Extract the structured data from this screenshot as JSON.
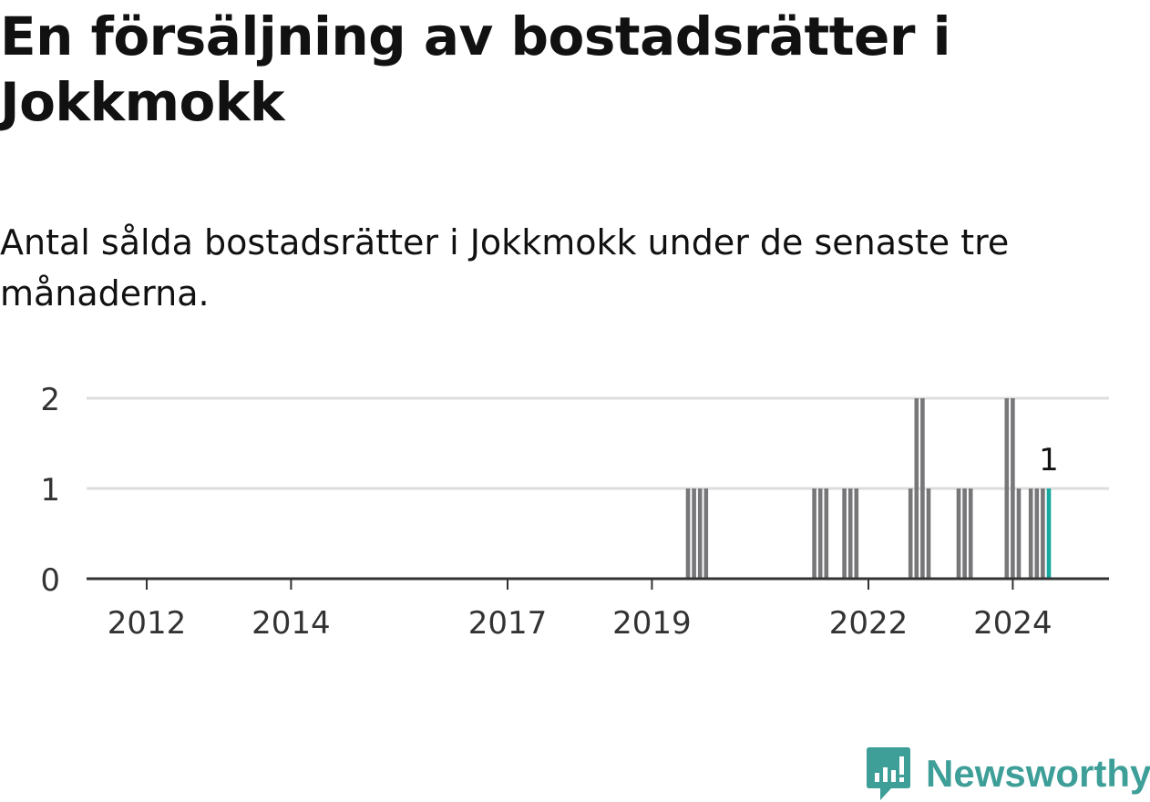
{
  "title": "En försäljning av bostadsrätter i Jokkmokk",
  "subtitle": "Antal sålda bostadsrätter i Jokkmokk under de senaste tre månaderna.",
  "brand": {
    "name": "Newsworthy",
    "color": "#3e9e98",
    "icon": "newsworthy-logo-icon"
  },
  "colors": {
    "bar": "#77777a",
    "highlight": "#18a9a0",
    "grid": "#dddddd",
    "axis": "#333333"
  },
  "chart_data": {
    "type": "bar",
    "title": "En försäljning av bostadsrätter i Jokkmokk",
    "subtitle": "Antal sålda bostadsrätter i Jokkmokk under de senaste tre månaderna.",
    "xlabel": "",
    "ylabel": "",
    "xlim": [
      "2011-09",
      "2025-11"
    ],
    "ylim": [
      0,
      2
    ],
    "y_ticks": [
      0,
      1,
      2
    ],
    "x_ticks": [
      "2012",
      "2014",
      "2017",
      "2019",
      "2022",
      "2024"
    ],
    "grid": true,
    "legend": "none",
    "series": [
      {
        "points": [
          {
            "month": "2020-01",
            "value": 1
          },
          {
            "month": "2020-02",
            "value": 1
          },
          {
            "month": "2020-03",
            "value": 1
          },
          {
            "month": "2020-04",
            "value": 1
          },
          {
            "month": "2021-10",
            "value": 1
          },
          {
            "month": "2021-11",
            "value": 1
          },
          {
            "month": "2021-12",
            "value": 1
          },
          {
            "month": "2022-03",
            "value": 1
          },
          {
            "month": "2022-04",
            "value": 1
          },
          {
            "month": "2022-05",
            "value": 1
          },
          {
            "month": "2023-02",
            "value": 1
          },
          {
            "month": "2023-03",
            "value": 2
          },
          {
            "month": "2023-04",
            "value": 2
          },
          {
            "month": "2023-05",
            "value": 1
          },
          {
            "month": "2023-10",
            "value": 1
          },
          {
            "month": "2023-11",
            "value": 1
          },
          {
            "month": "2023-12",
            "value": 1
          },
          {
            "month": "2024-06",
            "value": 2
          },
          {
            "month": "2024-07",
            "value": 2
          },
          {
            "month": "2024-08",
            "value": 1
          },
          {
            "month": "2024-10",
            "value": 1
          },
          {
            "month": "2024-11",
            "value": 1
          },
          {
            "month": "2024-12",
            "value": 1
          },
          {
            "month": "2025-01",
            "value": 1,
            "highlight": true
          }
        ]
      }
    ],
    "annotations": [
      {
        "month": "2025-01",
        "text": "1"
      }
    ]
  }
}
